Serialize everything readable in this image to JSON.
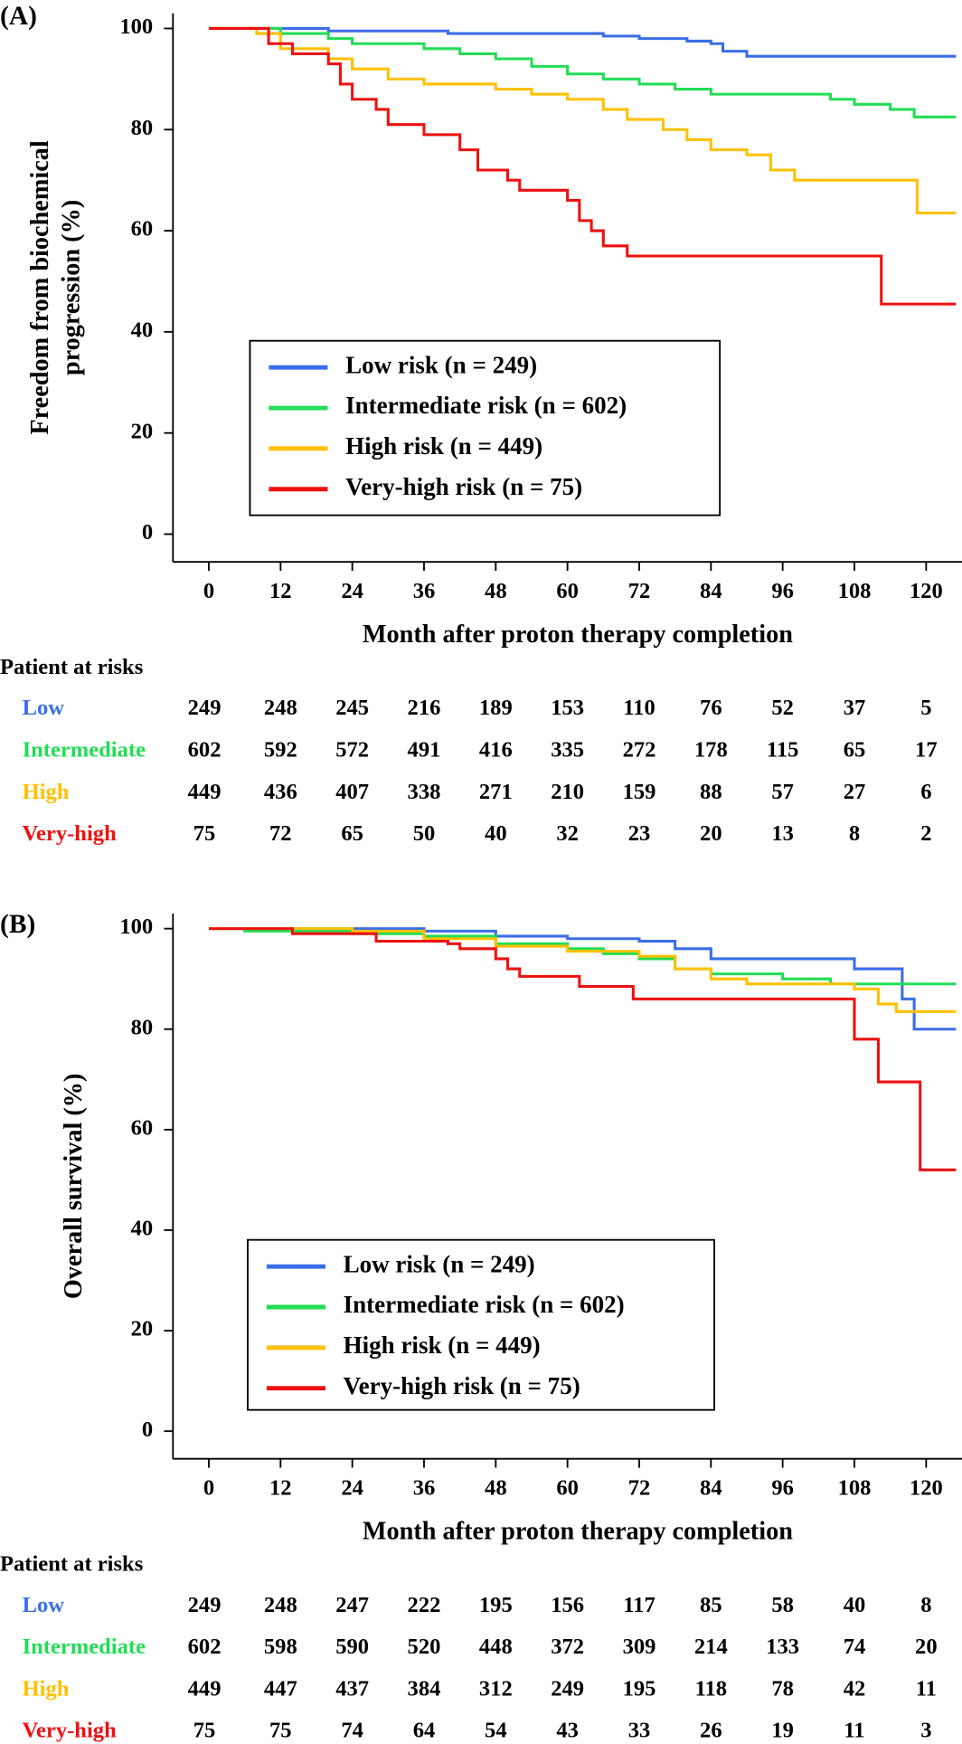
{
  "chart_data": [
    {
      "type": "line",
      "step": true,
      "title": "(A)",
      "ylabel_lines": [
        "Freedom from biochemical",
        "progression (%)"
      ],
      "xlabel": "Month after proton therapy completion",
      "xlim": [
        -6,
        126
      ],
      "ylim": [
        -5.5,
        103
      ],
      "xticks": [
        0,
        12,
        24,
        36,
        48,
        60,
        72,
        84,
        96,
        108,
        120
      ],
      "yticks": [
        0,
        20,
        40,
        60,
        80,
        100
      ],
      "series": [
        {
          "name": "Low risk (n = 249)",
          "color": "#3a6ee8",
          "x": [
            0,
            20,
            40,
            60,
            66,
            72,
            80,
            84,
            86,
            90,
            125
          ],
          "values": [
            100,
            99.5,
            99,
            99,
            98.5,
            98,
            97.5,
            97,
            95.5,
            94.5,
            94.5
          ]
        },
        {
          "name": "Intermediate risk (n = 602)",
          "color": "#22dd55",
          "x": [
            0,
            8,
            12,
            20,
            24,
            36,
            42,
            48,
            54,
            60,
            66,
            72,
            78,
            84,
            96,
            104,
            108,
            114,
            118,
            125
          ],
          "values": [
            100,
            100,
            99,
            98,
            97,
            96,
            95,
            94,
            92.5,
            91,
            90,
            89,
            88,
            87,
            87,
            86,
            85,
            84,
            82.5,
            82.5
          ]
        },
        {
          "name": "High risk (n = 449)",
          "color": "#ffc000",
          "x": [
            0,
            8,
            12,
            20,
            24,
            30,
            36,
            48,
            54,
            60,
            66,
            70,
            76,
            80,
            84,
            90,
            94,
            98,
            118,
            118.5,
            125
          ],
          "values": [
            100,
            99,
            96,
            94,
            92,
            90,
            89,
            88,
            87,
            86,
            84,
            82,
            80,
            78,
            76,
            75,
            72,
            70,
            70,
            63.5,
            63.5
          ]
        },
        {
          "name": "Very-high risk (n = 75)",
          "color": "#ee1111",
          "x": [
            0,
            8,
            10,
            14,
            20,
            22,
            24,
            28,
            30,
            36,
            42,
            45,
            50,
            52,
            60,
            62,
            64,
            66,
            70,
            112,
            112.5,
            125
          ],
          "values": [
            100,
            100,
            97,
            95,
            93,
            89,
            86,
            84,
            81,
            79,
            76,
            72,
            70,
            68,
            66,
            62,
            60,
            57,
            55,
            55,
            45.5,
            45.5
          ]
        }
      ],
      "risk_table": {
        "title": "Patient at risks",
        "rows": [
          {
            "label": "Low",
            "values": [
              249,
              248,
              245,
              216,
              189,
              153,
              110,
              76,
              52,
              37,
              5
            ]
          },
          {
            "label": "Intermediate",
            "values": [
              602,
              592,
              572,
              491,
              416,
              335,
              272,
              178,
              115,
              65,
              17
            ]
          },
          {
            "label": "High",
            "values": [
              449,
              436,
              407,
              338,
              271,
              210,
              159,
              88,
              57,
              27,
              6
            ]
          },
          {
            "label": "Very-high",
            "values": [
              75,
              72,
              65,
              50,
              40,
              32,
              23,
              20,
              13,
              8,
              2
            ]
          }
        ]
      }
    },
    {
      "type": "line",
      "step": true,
      "title": "(B)",
      "ylabel_lines": [
        "Overall survival (%)"
      ],
      "xlabel": "Month after proton therapy completion",
      "xlim": [
        -6,
        126
      ],
      "ylim": [
        -5.5,
        103
      ],
      "xticks": [
        0,
        12,
        24,
        36,
        48,
        60,
        72,
        84,
        96,
        108,
        120
      ],
      "yticks": [
        0,
        20,
        40,
        60,
        80,
        100
      ],
      "series": [
        {
          "name": "Low risk (n = 249)",
          "color": "#3a6ee8",
          "x": [
            0,
            36,
            48,
            60,
            72,
            78,
            84,
            104,
            108,
            114,
            116,
            118,
            125
          ],
          "values": [
            100,
            99.5,
            98.5,
            98,
            97.5,
            96,
            94,
            94,
            92,
            92,
            86,
            80,
            80
          ]
        },
        {
          "name": "Intermediate risk (n = 602)",
          "color": "#22dd55",
          "x": [
            0,
            6,
            24,
            36,
            48,
            60,
            66,
            72,
            78,
            84,
            96,
            104,
            125
          ],
          "values": [
            100,
            99.5,
            99,
            98.5,
            97,
            96,
            95,
            94,
            92,
            91,
            90,
            89,
            89
          ]
        },
        {
          "name": "High risk (n = 449)",
          "color": "#ffc000",
          "x": [
            0,
            24,
            36,
            48,
            60,
            72,
            78,
            84,
            90,
            108,
            112,
            115,
            125
          ],
          "values": [
            100,
            99.5,
            98,
            96.5,
            95.5,
            94.5,
            92,
            90,
            89,
            88,
            85,
            83.5,
            83.5
          ]
        },
        {
          "name": "Very-high risk (n = 75)",
          "color": "#ee1111",
          "x": [
            0,
            14,
            28,
            40,
            42,
            48,
            50,
            52,
            60,
            62,
            70,
            71,
            107,
            108,
            112,
            118,
            119,
            125
          ],
          "values": [
            100,
            99,
            97.5,
            97,
            96,
            94,
            92,
            90.5,
            90.5,
            88.5,
            88.5,
            86,
            86,
            78,
            69.5,
            69.5,
            52,
            52
          ]
        }
      ],
      "risk_table": {
        "title": "Patient at risks",
        "rows": [
          {
            "label": "Low",
            "values": [
              249,
              248,
              247,
              222,
              195,
              156,
              117,
              85,
              58,
              40,
              8
            ]
          },
          {
            "label": "Intermediate",
            "values": [
              602,
              598,
              590,
              520,
              448,
              372,
              309,
              214,
              133,
              74,
              20
            ]
          },
          {
            "label": "High",
            "values": [
              449,
              447,
              437,
              384,
              312,
              249,
              195,
              118,
              78,
              42,
              11
            ]
          },
          {
            "label": "Very-high",
            "values": [
              75,
              75,
              74,
              64,
              54,
              43,
              33,
              26,
              19,
              11,
              3
            ]
          }
        ]
      }
    }
  ]
}
